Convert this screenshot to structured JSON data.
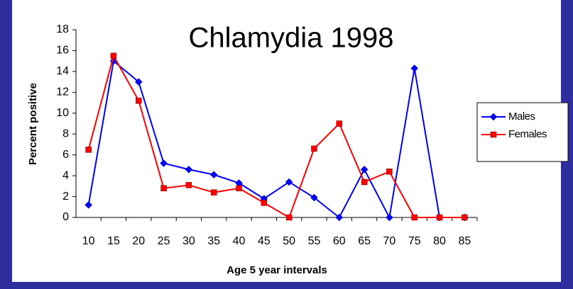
{
  "chart_data": {
    "type": "line",
    "title": "Chlamydia 1998",
    "x_label": "Age 5 year intervals",
    "y_label": "Percent positive",
    "categories": [
      10,
      15,
      20,
      25,
      30,
      35,
      40,
      45,
      50,
      55,
      60,
      65,
      70,
      75,
      80,
      85
    ],
    "series": [
      {
        "name": "Males",
        "color": "#0000ff",
        "marker": "diamond",
        "values": [
          1.2,
          15,
          13,
          5.2,
          4.6,
          4.1,
          3.3,
          1.8,
          3.4,
          1.9,
          0,
          4.6,
          0,
          14.3,
          0,
          0
        ]
      },
      {
        "name": "Females",
        "color": "#ff0000",
        "marker": "square",
        "values": [
          6.5,
          15.5,
          11.2,
          2.8,
          3.1,
          2.4,
          2.8,
          1.4,
          0,
          6.6,
          9,
          3.4,
          4.4,
          0,
          0,
          0
        ]
      }
    ],
    "ylim": [
      0,
      18
    ],
    "yticks": [
      0,
      2,
      4,
      6,
      8,
      10,
      12,
      14,
      16,
      18
    ],
    "grid": false,
    "legend": "right"
  }
}
